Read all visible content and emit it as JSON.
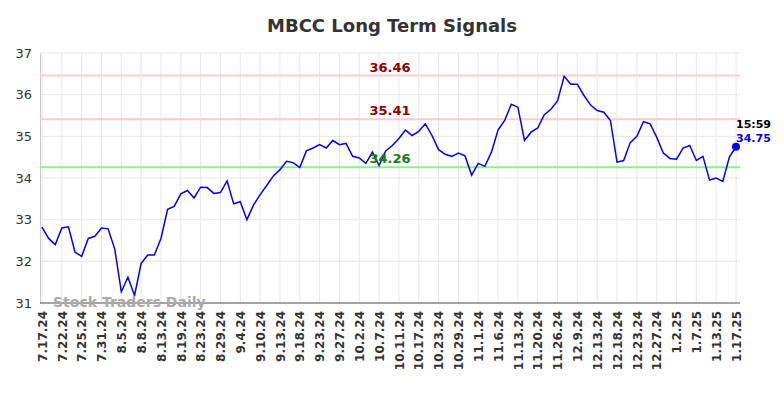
{
  "chart_data": {
    "type": "line",
    "title": "MBCC Long Term Signals",
    "categories": [
      "7.17.24",
      null,
      null,
      "7.22.24",
      null,
      null,
      "7.25.24",
      null,
      null,
      "7.31.24",
      null,
      null,
      "8.5.24",
      null,
      null,
      "8.8.24",
      null,
      null,
      "8.13.24",
      null,
      null,
      "8.19.24",
      null,
      null,
      "8.23.24",
      null,
      null,
      "8.29.24",
      null,
      null,
      "9.4.24",
      null,
      null,
      "9.10.24",
      null,
      null,
      "9.13.24",
      null,
      null,
      "9.18.24",
      null,
      null,
      "9.23.24",
      null,
      null,
      "9.27.24",
      null,
      null,
      "10.2.24",
      null,
      null,
      "10.7.24",
      null,
      null,
      "10.11.24",
      null,
      null,
      "10.17.24",
      null,
      null,
      "10.23.24",
      null,
      null,
      "10.29.24",
      null,
      null,
      "11.1.24",
      null,
      null,
      "11.6.24",
      null,
      null,
      "11.13.24",
      null,
      null,
      "11.20.24",
      null,
      null,
      "11.26.24",
      null,
      null,
      "12.9.24",
      null,
      null,
      "12.13.24",
      null,
      null,
      "12.18.24",
      null,
      null,
      "12.23.24",
      null,
      null,
      "12.27.24",
      null,
      null,
      "1.2.25",
      null,
      null,
      "1.7.25",
      null,
      null,
      "1.13.25",
      null,
      null,
      "1.17.25"
    ],
    "values": [
      32.82,
      32.55,
      32.4,
      32.8,
      32.83,
      32.22,
      32.12,
      32.55,
      32.6,
      32.8,
      32.78,
      32.3,
      31.27,
      31.62,
      31.18,
      31.95,
      32.15,
      32.15,
      32.55,
      33.25,
      33.32,
      33.62,
      33.7,
      33.52,
      33.78,
      33.77,
      33.63,
      33.65,
      33.93,
      33.38,
      33.43,
      33.0,
      33.35,
      33.6,
      33.82,
      34.05,
      34.2,
      34.4,
      34.37,
      34.25,
      34.65,
      34.72,
      34.8,
      34.72,
      34.9,
      34.8,
      34.83,
      34.52,
      34.48,
      34.35,
      34.62,
      34.3,
      34.65,
      34.78,
      34.95,
      35.15,
      35.02,
      35.12,
      35.3,
      35.02,
      34.68,
      34.57,
      34.52,
      34.6,
      34.53,
      34.07,
      34.35,
      34.28,
      34.62,
      35.15,
      35.38,
      35.77,
      35.7,
      34.9,
      35.1,
      35.2,
      35.52,
      35.65,
      35.85,
      36.44,
      36.25,
      36.25,
      35.98,
      35.75,
      35.62,
      35.58,
      35.38,
      34.38,
      34.42,
      34.85,
      35.0,
      35.35,
      35.3,
      34.98,
      34.6,
      34.47,
      34.45,
      34.72,
      34.78,
      34.42,
      34.52,
      33.95,
      34.0,
      33.92,
      34.5,
      34.75
    ],
    "color": "#0000ff",
    "ylim": [
      31,
      37
    ],
    "yticks": [
      31,
      32,
      33,
      34,
      35,
      36,
      37
    ],
    "grid": true,
    "reference_lines": [
      {
        "value": 36.46,
        "color": "#ffcccc"
      },
      {
        "value": 35.41,
        "color": "#ffcccc"
      },
      {
        "value": 34.26,
        "color": "#90ee90"
      }
    ],
    "annotations": [
      "15:59"
    ],
    "watermark": "Stock Traders Daily"
  }
}
